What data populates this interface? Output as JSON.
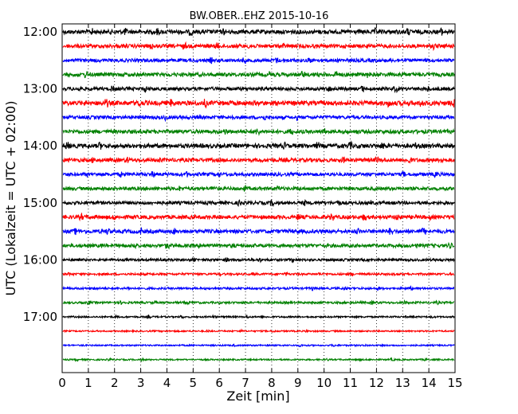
{
  "chart_data": {
    "type": "line",
    "title": "BW.OBER..EHZ 2015-10-16",
    "xlabel": "Zeit  [min]",
    "ylabel": "UTC (Lokalzeit = UTC + 02:00)",
    "xlim": [
      0,
      15
    ],
    "x_ticks": [
      "0",
      "1",
      "2",
      "3",
      "4",
      "5",
      "6",
      "7",
      "8",
      "9",
      "10",
      "11",
      "12",
      "13",
      "14",
      "15"
    ],
    "y_ticks": [
      "12:00",
      "13:00",
      "14:00",
      "15:00",
      "16:00",
      "17:00"
    ],
    "grid": "vertical dotted",
    "trace_colors": [
      "#000000",
      "#ff0000",
      "#0000ff",
      "#008000"
    ],
    "trace_start_minutes_utc": [
      720,
      735,
      750,
      765,
      780,
      795,
      810,
      825,
      840,
      855,
      870,
      885,
      900,
      915,
      930,
      945,
      960,
      975,
      990,
      1005,
      1020,
      1035,
      1050,
      1065
    ],
    "trace_amplitude": [
      1.0,
      0.9,
      0.8,
      0.9,
      0.8,
      1.1,
      0.8,
      0.9,
      1.0,
      0.9,
      0.8,
      0.8,
      0.8,
      0.9,
      0.9,
      0.8,
      0.6,
      0.5,
      0.5,
      0.5,
      0.4,
      0.35,
      0.35,
      0.35
    ]
  }
}
